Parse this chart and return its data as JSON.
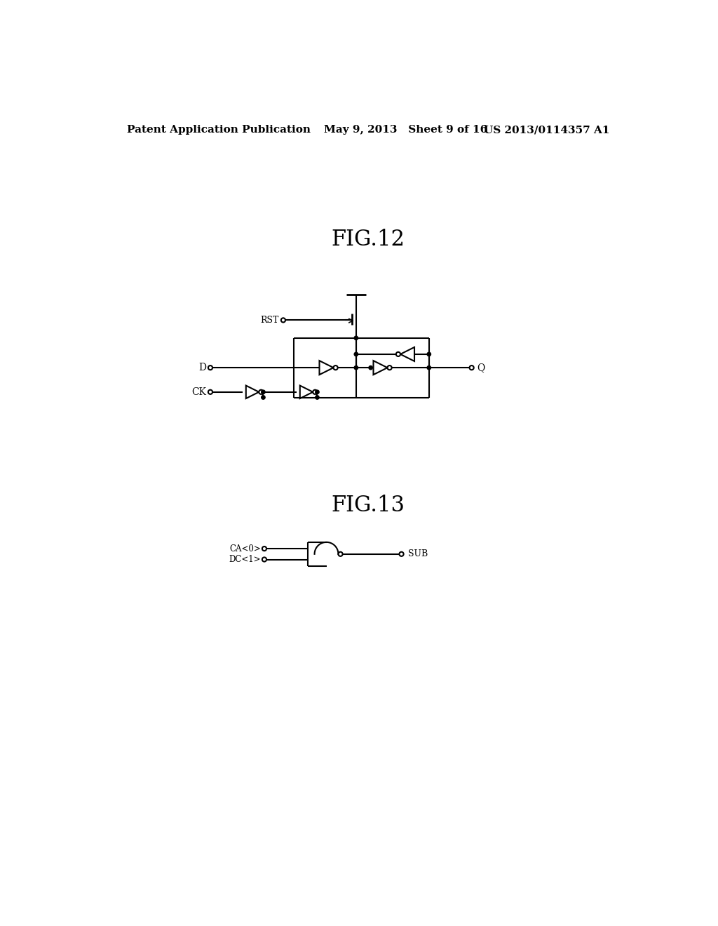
{
  "bg_color": "#ffffff",
  "header_left": "Patent Application Publication",
  "header_mid": "May 9, 2013   Sheet 9 of 16",
  "header_right": "US 2013/0114357 A1",
  "fig12_label": "FIG.12",
  "fig13_label": "FIG.13",
  "line_color": "#000000",
  "line_width": 1.5
}
